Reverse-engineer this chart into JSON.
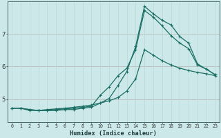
{
  "xlabel": "Humidex (Indice chaleur)",
  "xlim": [
    -0.5,
    23.5
  ],
  "ylim": [
    4.3,
    8.0
  ],
  "xticks": [
    0,
    1,
    2,
    3,
    4,
    5,
    6,
    7,
    8,
    9,
    10,
    11,
    12,
    13,
    14,
    15,
    16,
    17,
    18,
    19,
    20,
    21,
    22,
    23
  ],
  "yticks": [
    5,
    6,
    7
  ],
  "bg_color": "#cce8e8",
  "line_color": "#1a6e64",
  "grid_color_minor": "#b8d8d8",
  "grid_color_major": "#c0a0a0",
  "series1_x": [
    0,
    1,
    2,
    3,
    4,
    5,
    6,
    7,
    8,
    9,
    10,
    11,
    12,
    13,
    14,
    15,
    16,
    17,
    18,
    19,
    20,
    21,
    22,
    23
  ],
  "series1_y": [
    4.72,
    4.72,
    4.65,
    4.65,
    4.68,
    4.7,
    4.72,
    4.75,
    4.78,
    4.82,
    4.88,
    4.95,
    5.05,
    5.25,
    5.62,
    6.52,
    6.35,
    6.18,
    6.05,
    5.95,
    5.88,
    5.82,
    5.78,
    5.72
  ],
  "series2_x": [
    0,
    1,
    2,
    3,
    4,
    5,
    6,
    7,
    8,
    9,
    10,
    11,
    12,
    13,
    14,
    15,
    16,
    17,
    18,
    19,
    20,
    21,
    22,
    23
  ],
  "series2_y": [
    4.72,
    4.72,
    4.68,
    4.65,
    4.65,
    4.68,
    4.7,
    4.72,
    4.75,
    4.78,
    5.12,
    5.38,
    5.72,
    5.95,
    6.52,
    7.72,
    7.52,
    7.25,
    6.95,
    6.72,
    6.55,
    6.05,
    5.92,
    5.75
  ],
  "series3_x": [
    0,
    1,
    2,
    3,
    4,
    5,
    6,
    7,
    8,
    9,
    10,
    11,
    12,
    13,
    14,
    15,
    16,
    17,
    18,
    19,
    20,
    21,
    22,
    23
  ],
  "series3_y": [
    4.72,
    4.72,
    4.68,
    4.65,
    4.65,
    4.65,
    4.68,
    4.68,
    4.72,
    4.75,
    4.88,
    5.02,
    5.42,
    5.85,
    6.62,
    7.85,
    7.62,
    7.42,
    7.28,
    6.92,
    6.72,
    6.08,
    5.92,
    5.75
  ]
}
